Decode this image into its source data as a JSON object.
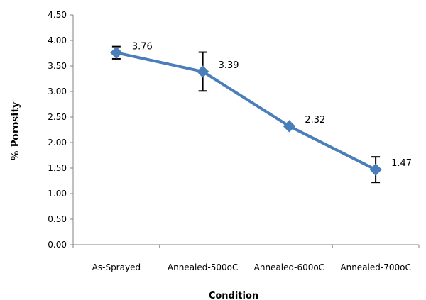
{
  "chart_data": {
    "type": "line",
    "title": "",
    "xlabel": "Condition",
    "ylabel": "% Porosity",
    "categories": [
      "As-Sprayed",
      "Annealed-500oC",
      "Annealed-600oC",
      "Annealed-700oC"
    ],
    "series": [
      {
        "values": [
          3.76,
          3.39,
          2.32,
          1.47
        ],
        "error_plus": [
          0.12,
          0.38,
          0,
          0.25
        ],
        "error_minus": [
          0.12,
          0.38,
          0,
          0.25
        ],
        "data_labels": [
          "3.76",
          "3.39",
          "2.32",
          "1.47"
        ],
        "color": "#4a7ebb",
        "marker": "diamond"
      }
    ],
    "ylim": [
      0,
      4.5
    ],
    "yticks": [
      "0.00",
      "0.50",
      "1.00",
      "1.50",
      "2.00",
      "2.50",
      "3.00",
      "3.50",
      "4.00",
      "4.50"
    ],
    "grid": false,
    "legend": "none"
  }
}
